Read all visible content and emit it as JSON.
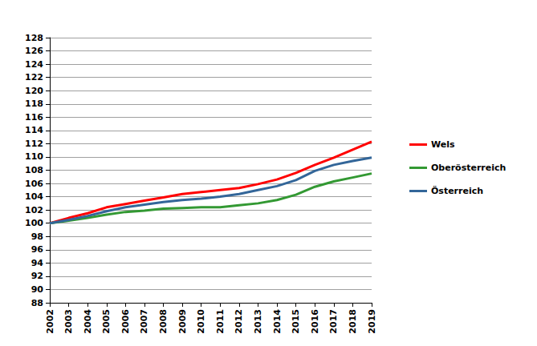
{
  "chart_data": {
    "type": "line",
    "categories": [
      "2002",
      "2003",
      "2004",
      "2005",
      "2006",
      "2007",
      "2008",
      "2009",
      "2010",
      "2011",
      "2012",
      "2013",
      "2014",
      "2015",
      "2016",
      "2017",
      "2018",
      "2019"
    ],
    "series": [
      {
        "name": "Wels",
        "color": "#ff0000",
        "values": [
          100,
          100.8,
          101.5,
          102.4,
          102.9,
          103.4,
          103.9,
          104.4,
          104.7,
          105.0,
          105.3,
          105.9,
          106.6,
          107.6,
          108.8,
          109.9,
          111.1,
          112.3
        ]
      },
      {
        "name": "Oberösterreich",
        "color": "#339933",
        "values": [
          100,
          100.4,
          100.8,
          101.3,
          101.7,
          101.9,
          102.2,
          102.3,
          102.4,
          102.4,
          102.7,
          103.0,
          103.5,
          104.3,
          105.5,
          106.3,
          106.9,
          107.5
        ]
      },
      {
        "name": "Österreich",
        "color": "#336699",
        "values": [
          100,
          100.5,
          101.1,
          101.8,
          102.4,
          102.8,
          103.2,
          103.5,
          103.7,
          104.0,
          104.4,
          105.0,
          105.6,
          106.5,
          107.9,
          108.8,
          109.4,
          109.9
        ]
      }
    ],
    "ylim": [
      88,
      128
    ],
    "yticks": [
      88,
      90,
      92,
      94,
      96,
      98,
      100,
      102,
      104,
      106,
      108,
      110,
      112,
      114,
      116,
      118,
      120,
      122,
      124,
      126,
      128
    ],
    "grid": true,
    "legend": "right"
  }
}
